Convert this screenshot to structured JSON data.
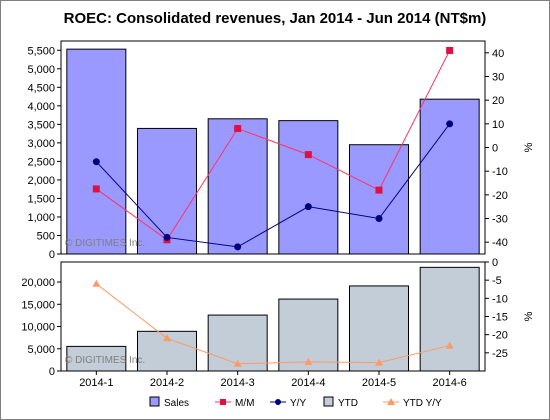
{
  "title": "ROEC: Consolidated revenues, Jan 2014 - Jun 2014 (NT$m)",
  "watermark": "© DIGITIMES Inc.",
  "colors": {
    "sales_fill": "#9999ff",
    "ytd_fill": "#c3cdd7",
    "mm_line": "#ff3366",
    "mm_marker": "#dd1144",
    "yy_line": "#000080",
    "ytdyy_line": "#ff9966"
  },
  "chart_data": [
    {
      "type": "bar+line",
      "categories": [
        "2014-1",
        "2014-2",
        "2014-3",
        "2014-4",
        "2014-5",
        "2014-6"
      ],
      "y_left": {
        "ylim": [
          0,
          5750
        ],
        "ticks": [
          0,
          500,
          1000,
          1500,
          2000,
          2500,
          3000,
          3500,
          4000,
          4500,
          5000,
          5500
        ],
        "tick_labels": [
          "0",
          "500",
          "1,000",
          "1,500",
          "2,000",
          "2,500",
          "3,000",
          "3,500",
          "4,000",
          "4,500",
          "5,000",
          "5,500"
        ]
      },
      "y_right": {
        "label": "%",
        "ylim": [
          -45,
          45
        ],
        "ticks": [
          -40,
          -30,
          -20,
          -10,
          0,
          10,
          20,
          30,
          40
        ],
        "tick_labels": [
          "-40",
          "-30",
          "-20",
          "-10",
          "0",
          "10",
          "20",
          "30",
          "40"
        ]
      },
      "series": [
        {
          "name": "Sales",
          "kind": "bar",
          "axis": "left",
          "values": [
            5530,
            3390,
            3650,
            3600,
            2950,
            4180
          ]
        },
        {
          "name": "M/M",
          "kind": "line",
          "axis": "right",
          "values": [
            -17.5,
            -39,
            8,
            -3,
            -18,
            41
          ]
        },
        {
          "name": "Y/Y",
          "kind": "line",
          "axis": "right",
          "values": [
            -6,
            -38,
            -42,
            -25,
            -30,
            10
          ]
        }
      ]
    },
    {
      "type": "bar+line",
      "categories": [
        "2014-1",
        "2014-2",
        "2014-3",
        "2014-4",
        "2014-5",
        "2014-6"
      ],
      "y_left": {
        "ylim": [
          0,
          24500
        ],
        "ticks": [
          0,
          5000,
          10000,
          15000,
          20000
        ],
        "tick_labels": [
          "0",
          "5,000",
          "10,000",
          "15,000",
          "20,000"
        ]
      },
      "y_right": {
        "label": "%",
        "ylim": [
          -30,
          0
        ],
        "ticks": [
          0,
          -5,
          -10,
          -15,
          -20,
          -25
        ],
        "tick_labels": [
          "0",
          "-5",
          "-10",
          "-15",
          "-20",
          "-25"
        ]
      },
      "series": [
        {
          "name": "YTD",
          "kind": "bar",
          "axis": "left",
          "values": [
            5530,
            8920,
            12570,
            16170,
            19120,
            23300
          ]
        },
        {
          "name": "YTD Y/Y",
          "kind": "line",
          "axis": "right",
          "values": [
            -6,
            -21,
            -28,
            -27.5,
            -27.7,
            -23
          ]
        }
      ]
    }
  ],
  "legend": [
    "Sales",
    "M/M",
    "Y/Y",
    "YTD",
    "YTD Y/Y"
  ]
}
